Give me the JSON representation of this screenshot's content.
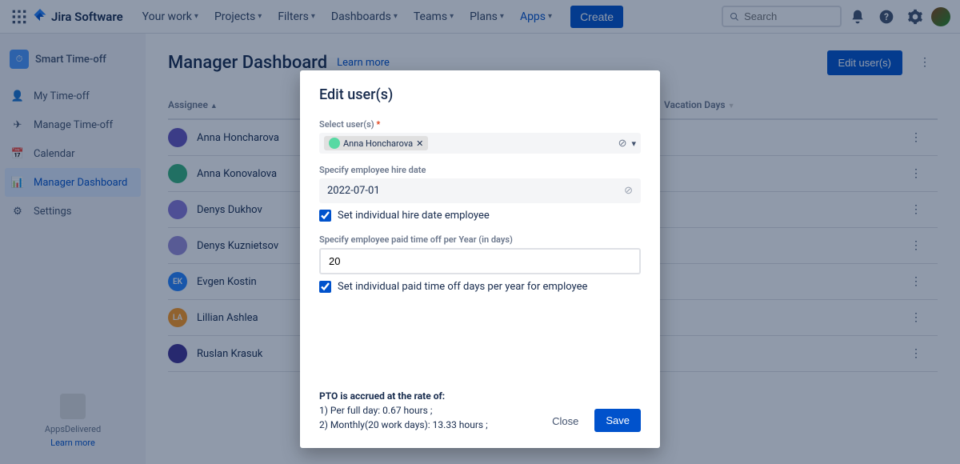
{
  "topnav": {
    "logo": "Jira Software",
    "items": [
      "Your work",
      "Projects",
      "Filters",
      "Dashboards",
      "Teams",
      "Plans",
      "Apps"
    ],
    "create": "Create",
    "search_placeholder": "Search"
  },
  "sidebar": {
    "title": "Smart Time-off",
    "items": [
      {
        "label": "My Time-off",
        "icon": "user-clock"
      },
      {
        "label": "Manage Time-off",
        "icon": "plane"
      },
      {
        "label": "Calendar",
        "icon": "calendar"
      },
      {
        "label": "Manager Dashboard",
        "icon": "dashboard",
        "selected": true
      },
      {
        "label": "Settings",
        "icon": "gear"
      }
    ],
    "footer_text": "AppsDelivered",
    "footer_link": "Learn more"
  },
  "page": {
    "title": "Manager Dashboard",
    "learn_more": "Learn more",
    "edit_users_btn": "Edit user(s)",
    "col_assignee": "Assignee",
    "col_vacation": "Vacation Days"
  },
  "users": [
    {
      "name": "Anna Honcharova",
      "bg": "#6554c0"
    },
    {
      "name": "Anna Konovalova",
      "bg": "#36b37e"
    },
    {
      "name": "Denys Dukhov",
      "bg": "#8777d9"
    },
    {
      "name": "Denys Kuznietsov",
      "bg": "#998dd9"
    },
    {
      "name": "Evgen Kostin",
      "bg": "#2684ff",
      "initials": "EK"
    },
    {
      "name": "Lillian Ashlea",
      "bg": "#ff991f",
      "initials": "LA"
    },
    {
      "name": "Ruslan Krasuk",
      "bg": "#403294"
    }
  ],
  "modal": {
    "title": "Edit user(s)",
    "select_label": "Select user(s)",
    "selected_user": "Anna Honcharova",
    "hire_date_label": "Specify employee hire date",
    "hire_date": "2022-07-01",
    "hire_date_checkbox": "Set individual hire date employee",
    "pto_label": "Specify employee paid time off per Year (in days)",
    "pto_value": "20",
    "pto_checkbox": "Set individual paid time off days per year for employee",
    "accrual_head": "PTO is accrued at the rate of:",
    "accrual_1": "1) Per full day: 0.67 hours ;",
    "accrual_2": "2) Monthly(20 work days): 13.33 hours ;",
    "close": "Close",
    "save": "Save"
  }
}
